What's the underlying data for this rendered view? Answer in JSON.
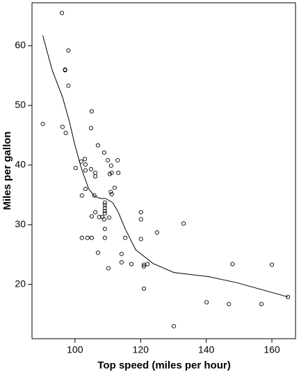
{
  "chart_data": {
    "type": "scatter",
    "x_label": "Top speed (miles per hour)",
    "y_label": "Miles per gallon",
    "xlim": [
      86.9,
      167.2
    ],
    "ylim": [
      10.9,
      67.2
    ],
    "xticks": [
      100,
      120,
      140,
      160
    ],
    "yticks": [
      20,
      30,
      40,
      50,
      60
    ],
    "color": "#000000",
    "x": [
      96,
      98,
      97,
      97,
      98,
      90.2,
      96.2,
      97.2,
      105.1,
      104.9,
      107,
      108.9,
      101.9,
      103,
      103.2,
      100.2,
      103.2,
      104.9,
      106.2,
      106.2,
      110,
      111,
      113,
      110.6,
      111.2,
      113.2,
      110.9,
      111.2,
      112.1,
      103.2,
      102.1,
      105.9,
      109.1,
      109.1,
      109.1,
      109.1,
      109.1,
      106.2,
      105.1,
      107.4,
      108.3,
      108.9,
      110.4,
      109.1,
      102.1,
      103.8,
      105.1,
      109.1,
      115.3,
      107,
      114.2,
      110.2,
      114.2,
      117.2,
      120.1,
      120.1,
      120.1,
      121,
      121,
      122.1,
      125,
      133.1,
      121,
      130.1,
      140.1,
      146.9,
      148,
      156.8,
      160,
      164.9
    ],
    "values": [
      65.5,
      59.2,
      55.9,
      56.0,
      53.3,
      46.9,
      46.4,
      45.4,
      49.0,
      46.2,
      43.3,
      42.1,
      40.6,
      41,
      40.1,
      39.5,
      39.1,
      39.3,
      38.7,
      38.1,
      40.8,
      39.9,
      40.8,
      38.5,
      38.7,
      38.7,
      35.5,
      35.1,
      36.2,
      36.0,
      34.9,
      34.9,
      33.7,
      33.3,
      32.8,
      32.3,
      31.9,
      32.1,
      31.4,
      31.3,
      31.3,
      30.9,
      31.2,
      29.3,
      27.8,
      27.8,
      27.8,
      27.8,
      27.8,
      25.3,
      25.1,
      22.7,
      23.7,
      23.4,
      32.1,
      30.9,
      27.6,
      23.0,
      23.3,
      23.4,
      28.7,
      30.2,
      19.3,
      13.0,
      17.0,
      16.7,
      23.4,
      16.7,
      23.3,
      17.9
    ],
    "smooth": {
      "x": [
        90.2,
        93,
        96.2,
        98.3,
        100,
        102.1,
        104.2,
        105.9,
        107.8,
        109.3,
        111.5,
        113.1,
        115.3,
        118.5,
        123.8,
        130.1,
        140.7,
        149.2,
        164.9
      ],
      "values": [
        61.7,
        56.0,
        51.4,
        47.3,
        43.3,
        39.2,
        36.0,
        34.8,
        34.4,
        34.4,
        33.7,
        32.2,
        29.3,
        25.8,
        23.5,
        22.0,
        21.3,
        20.3,
        17.9
      ]
    }
  }
}
